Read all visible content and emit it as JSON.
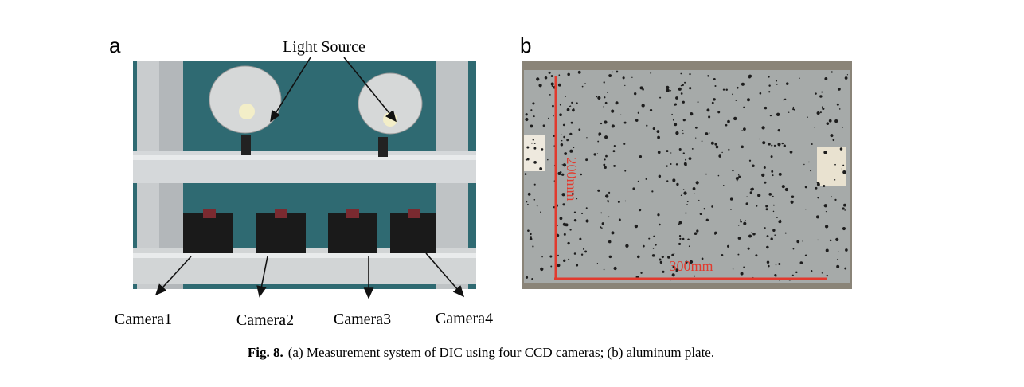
{
  "panels": [
    {
      "label": "a",
      "light_source": "Light Source",
      "cameras": [
        "Camera1",
        "Camera2",
        "Camera3",
        "Camera4"
      ]
    },
    {
      "label": "b",
      "dimensions": [
        "200mm",
        "300mm"
      ]
    }
  ],
  "caption": {
    "label": "Fig. 8.",
    "text": "(a) Measurement system of DIC using four CCD cameras; (b) aluminum plate."
  }
}
